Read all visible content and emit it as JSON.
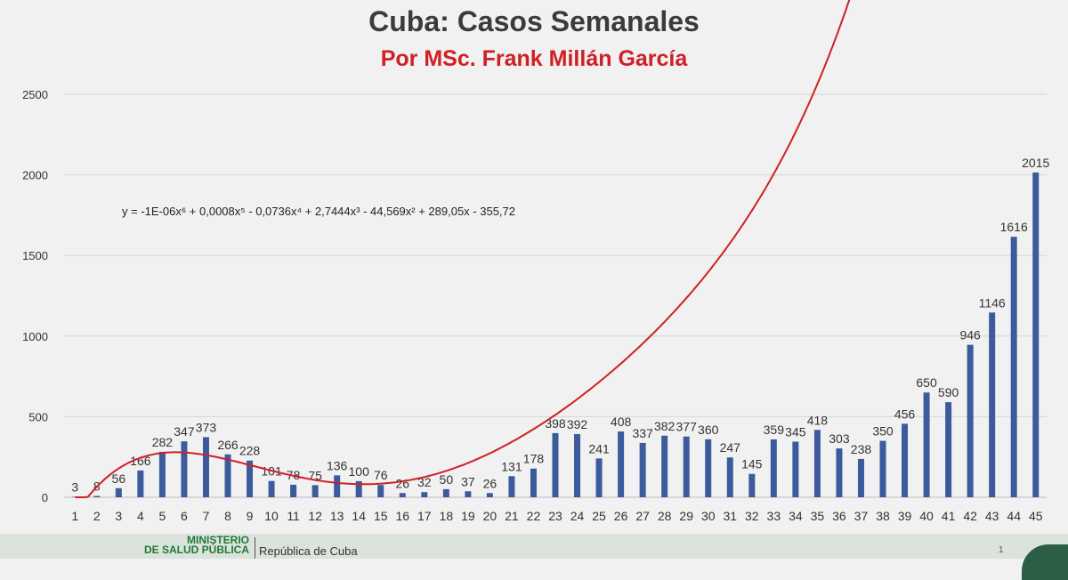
{
  "chart_data": {
    "type": "bar",
    "title": "Cuba: Casos Semanales",
    "subtitle": "Por MSc. Frank Millán García",
    "categories": [
      "1",
      "2",
      "3",
      "4",
      "5",
      "6",
      "7",
      "8",
      "9",
      "10",
      "11",
      "12",
      "13",
      "14",
      "15",
      "16",
      "17",
      "18",
      "19",
      "20",
      "21",
      "22",
      "23",
      "24",
      "25",
      "26",
      "27",
      "28",
      "29",
      "30",
      "31",
      "32",
      "33",
      "34",
      "35",
      "36",
      "37",
      "38",
      "39",
      "40",
      "41",
      "42",
      "43",
      "44",
      "45"
    ],
    "values": [
      3,
      8,
      56,
      166,
      282,
      347,
      373,
      266,
      228,
      101,
      78,
      75,
      136,
      100,
      76,
      26,
      32,
      50,
      37,
      26,
      131,
      178,
      398,
      392,
      241,
      408,
      337,
      382,
      377,
      360,
      247,
      145,
      359,
      345,
      418,
      303,
      238,
      350,
      456,
      650,
      590,
      946,
      1146,
      1616,
      2015
    ],
    "data_labels": [
      "3",
      "8",
      "56",
      "166",
      "282",
      "347",
      "373",
      "266",
      "228",
      "101",
      "78",
      "75",
      "136",
      "100",
      "76",
      "26",
      "32",
      "50",
      "37",
      "26",
      "131",
      "178",
      "398",
      "392",
      "241",
      "408",
      "337",
      "382",
      "377",
      "360",
      "247",
      "145",
      "359",
      "345",
      "418",
      "303",
      "238",
      "350",
      "456",
      "650",
      "590",
      "946",
      "1146",
      "1616",
      "2015"
    ],
    "ylim": [
      0,
      2500
    ],
    "yticks": [
      0,
      500,
      1000,
      1500,
      2000,
      2500
    ],
    "grid": true,
    "trendline": {
      "type": "polynomial-6",
      "equation": "y = -1E-06x⁶ + 0,0008x⁵ - 0,0736x⁴ + 2,7444x³ - 44,569x² + 289,05x - 355,72"
    },
    "colors": {
      "bar": "#3c5b9c",
      "trend": "#cf2027",
      "title": "#3b3b3b",
      "subtitle": "#d01f25"
    }
  },
  "footer": {
    "ministry_line1": "MINISTERIO",
    "ministry_line2": "DE SALUD PÚBLICA",
    "republic": "República de Cuba",
    "page_number": "1"
  }
}
